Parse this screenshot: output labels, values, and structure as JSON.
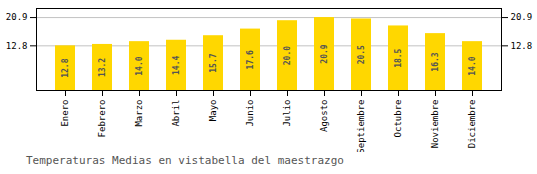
{
  "chart_data": {
    "type": "bar",
    "title": "Temperaturas Medias en vistabella del maestrazgo",
    "categories": [
      "Enero",
      "Febrero",
      "Marzo",
      "Abril",
      "Mayo",
      "Junio",
      "Julio",
      "Agosto",
      "Septiembre",
      "Octubre",
      "Noviembre",
      "Diciembre"
    ],
    "values": [
      12.8,
      13.2,
      14.0,
      14.4,
      15.7,
      17.6,
      20.0,
      20.9,
      20.5,
      18.5,
      16.3,
      14.0
    ],
    "value_labels": [
      "12.8",
      "13.2",
      "14.0",
      "14.4",
      "15.7",
      "17.6",
      "20.0",
      "20.9",
      "20.5",
      "18.5",
      "16.3",
      "14.0"
    ],
    "color": "#FFD700",
    "ylim": [
      0,
      23.5
    ],
    "yticks": [
      12.8,
      20.9
    ],
    "grid": true,
    "data_labels": true
  }
}
